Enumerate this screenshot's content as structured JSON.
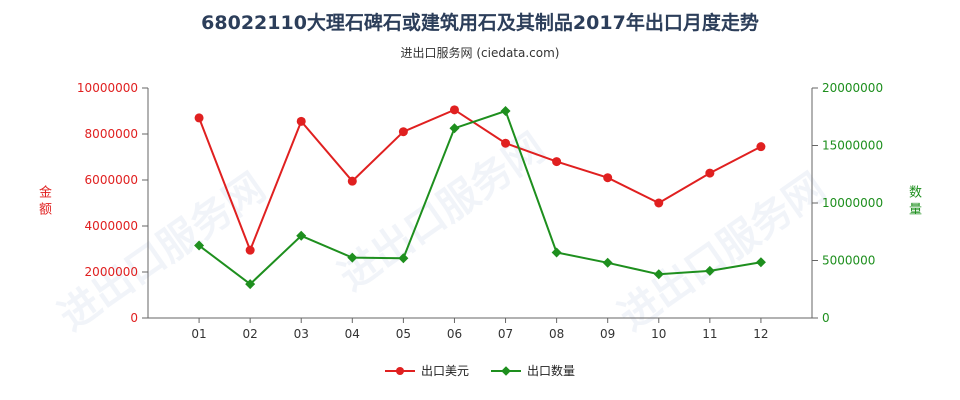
{
  "header": {
    "title": "68022110大理石碑石或建筑用石及其制品2017年出口月度走势",
    "subtitle": "进出口服务网 (ciedata.com)"
  },
  "watermark": "进出口服务网",
  "colors": {
    "value": "#e02020",
    "quantity": "#1e8f1e"
  },
  "chart_data": {
    "type": "line",
    "categories": [
      "01",
      "02",
      "03",
      "04",
      "05",
      "06",
      "07",
      "08",
      "09",
      "10",
      "11",
      "12"
    ],
    "series": [
      {
        "name": "出口美元",
        "axis": "left",
        "color": "#e02020",
        "marker": "circle",
        "values": [
          8700000,
          2950000,
          8550000,
          5950000,
          8100000,
          9050000,
          7600000,
          6800000,
          6100000,
          5000000,
          6300000,
          7450000
        ]
      },
      {
        "name": "出口数量",
        "axis": "right",
        "color": "#1e8f1e",
        "marker": "diamond",
        "values": [
          6300000,
          2950000,
          7150000,
          5250000,
          5200000,
          16500000,
          18000000,
          5700000,
          4800000,
          3800000,
          4100000,
          4850000
        ]
      }
    ],
    "y_left": {
      "label": "金额",
      "ylim": [
        0,
        10000000
      ],
      "ticks": [
        "0",
        "2000000",
        "4000000",
        "6000000",
        "8000000",
        "10000000"
      ]
    },
    "y_right": {
      "label": "数量",
      "ylim": [
        0,
        20000000
      ],
      "ticks": [
        "0",
        "5000000",
        "10000000",
        "15000000",
        "20000000"
      ]
    },
    "legend_position": "bottom-center",
    "grid": false
  }
}
